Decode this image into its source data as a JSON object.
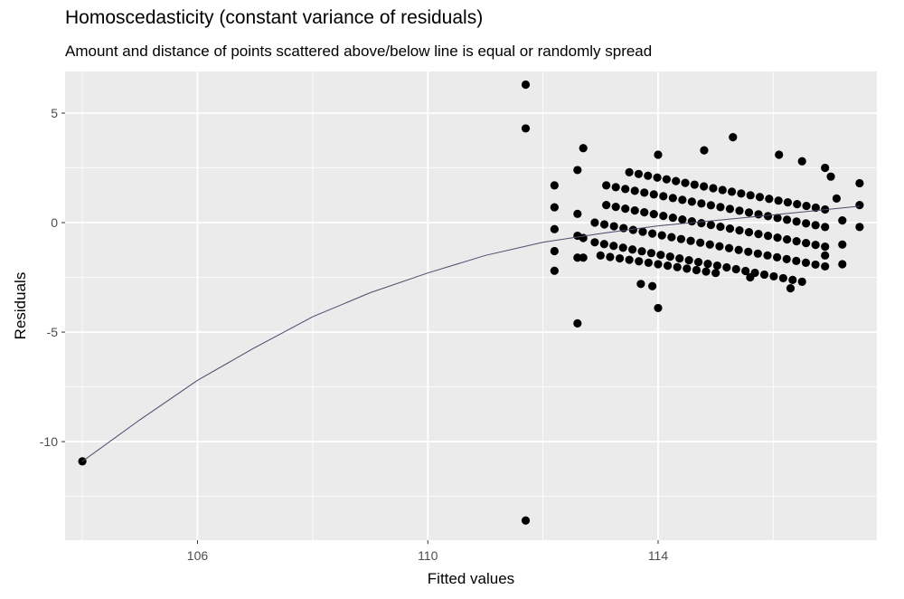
{
  "chart_data": {
    "type": "scatter",
    "title": "Homoscedasticity (constant variance of residuals)",
    "subtitle": "Amount and distance of points scattered above/below line is equal or randomly spread",
    "xlabel": "Fitted values",
    "ylabel": "Residuals",
    "xlim": [
      103.7,
      117.8
    ],
    "ylim": [
      -14.5,
      6.9
    ],
    "x_ticks": [
      106,
      110,
      114
    ],
    "y_ticks": [
      5,
      0,
      -5,
      -10
    ],
    "x_tick_labels": [
      "106",
      "110",
      "114"
    ],
    "y_tick_labels": [
      "5",
      "0",
      "-5",
      "-10"
    ],
    "grid": true,
    "panel_background": "#ebebeb",
    "grid_color": "#ffffff",
    "point_color": "#000000",
    "line_color": "#4a4a6a",
    "points": [
      {
        "x": 104.0,
        "y": -10.9
      },
      {
        "x": 111.7,
        "y": 6.3
      },
      {
        "x": 111.7,
        "y": 4.3
      },
      {
        "x": 111.7,
        "y": -13.6
      },
      {
        "x": 112.2,
        "y": 1.7
      },
      {
        "x": 112.2,
        "y": 0.7
      },
      {
        "x": 112.2,
        "y": -0.3
      },
      {
        "x": 112.2,
        "y": -1.3
      },
      {
        "x": 112.2,
        "y": -2.2
      },
      {
        "x": 112.6,
        "y": 2.4
      },
      {
        "x": 112.6,
        "y": 0.4
      },
      {
        "x": 112.6,
        "y": -0.6
      },
      {
        "x": 112.6,
        "y": -1.6
      },
      {
        "x": 112.6,
        "y": -4.6
      },
      {
        "x": 112.7,
        "y": 3.4
      },
      {
        "x": 112.7,
        "y": -0.7
      },
      {
        "x": 112.7,
        "y": -1.6
      },
      {
        "x": 113.7,
        "y": -2.8
      },
      {
        "x": 113.9,
        "y": -2.9
      },
      {
        "x": 114.0,
        "y": -3.9
      },
      {
        "x": 114.0,
        "y": 3.1
      },
      {
        "x": 114.8,
        "y": 3.3
      },
      {
        "x": 115.3,
        "y": 3.9
      },
      {
        "x": 115.6,
        "y": -2.5
      },
      {
        "x": 116.3,
        "y": -3.0
      },
      {
        "x": 116.1,
        "y": 3.1
      },
      {
        "x": 116.5,
        "y": 2.8
      },
      {
        "x": 116.9,
        "y": 2.5
      },
      {
        "x": 117.0,
        "y": 2.1
      },
      {
        "x": 117.1,
        "y": 1.1
      },
      {
        "x": 117.2,
        "y": 0.1
      },
      {
        "x": 117.2,
        "y": -1.0
      },
      {
        "x": 117.2,
        "y": -1.9
      },
      {
        "x": 116.9,
        "y": -1.5
      },
      {
        "x": 117.5,
        "y": 1.8
      },
      {
        "x": 117.5,
        "y": 0.8
      },
      {
        "x": 117.5,
        "y": -0.2
      }
    ],
    "point_bands": [
      {
        "x_start": 113.5,
        "x_end": 116.9,
        "y_start": 2.3,
        "slope": -0.5,
        "count": 22
      },
      {
        "x_start": 113.1,
        "x_end": 116.9,
        "y_start": 1.7,
        "slope": -0.5,
        "count": 24
      },
      {
        "x_start": 113.1,
        "x_end": 116.9,
        "y_start": 0.8,
        "slope": -0.5,
        "count": 24
      },
      {
        "x_start": 112.9,
        "x_end": 116.9,
        "y_start": 0.0,
        "slope": -0.5,
        "count": 25
      },
      {
        "x_start": 112.9,
        "x_end": 116.5,
        "y_start": -0.9,
        "slope": -0.5,
        "count": 23
      },
      {
        "x_start": 113.0,
        "x_end": 115.0,
        "y_start": -1.5,
        "slope": -0.4,
        "count": 13
      }
    ],
    "trend_line": {
      "x": [
        104.0,
        105.0,
        106.0,
        107.0,
        108.0,
        109.0,
        110.0,
        111.0,
        112.0,
        113.0,
        114.0,
        115.0,
        116.0,
        117.5
      ],
      "y": [
        -10.9,
        -9.0,
        -7.2,
        -5.7,
        -4.3,
        -3.2,
        -2.3,
        -1.5,
        -0.9,
        -0.5,
        -0.15,
        0.1,
        0.35,
        0.75
      ]
    }
  }
}
